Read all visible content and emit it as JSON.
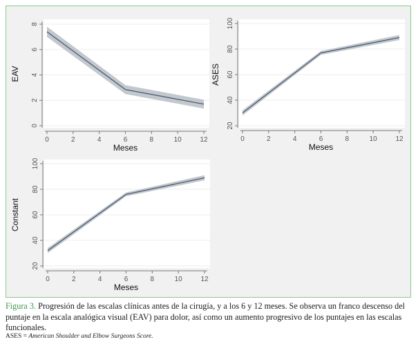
{
  "chart_data": [
    {
      "type": "line",
      "ylabel": "EAV",
      "xlabel": "Meses",
      "x": [
        0,
        6,
        12
      ],
      "values": [
        7.4,
        2.85,
        1.7
      ],
      "ci_lower": [
        7.0,
        2.5,
        1.35
      ],
      "ci_upper": [
        7.8,
        3.2,
        2.05
      ],
      "xticks": [
        0,
        2,
        4,
        6,
        8,
        10,
        12
      ],
      "yticks": [
        0,
        2,
        4,
        6,
        8
      ],
      "xlim": [
        0,
        12
      ],
      "ylim": [
        0,
        8
      ],
      "grid": true
    },
    {
      "type": "line",
      "ylabel": "ASES",
      "xlabel": "Meses",
      "x": [
        0,
        6,
        12
      ],
      "values": [
        30,
        77,
        89
      ],
      "ci_lower": [
        28,
        75.5,
        87
      ],
      "ci_upper": [
        32,
        78.5,
        91
      ],
      "xticks": [
        0,
        2,
        4,
        6,
        8,
        10,
        12
      ],
      "yticks": [
        20,
        40,
        60,
        80,
        100
      ],
      "xlim": [
        0,
        12
      ],
      "ylim": [
        20,
        100
      ],
      "grid": true
    },
    {
      "type": "line",
      "ylabel": "Constant",
      "xlabel": "Meses",
      "x": [
        0,
        6,
        12
      ],
      "values": [
        32,
        76,
        89
      ],
      "ci_lower": [
        30,
        74.5,
        87
      ],
      "ci_upper": [
        34,
        77.5,
        91
      ],
      "xticks": [
        0,
        2,
        4,
        6,
        8,
        10,
        12
      ],
      "yticks": [
        20,
        40,
        60,
        80,
        100
      ],
      "xlim": [
        0,
        12
      ],
      "ylim": [
        20,
        100
      ],
      "grid": true
    }
  ],
  "colors": {
    "frame_border": "#8cc88c",
    "frame_background": "#f1f1f1",
    "plot_background": "#ffffff",
    "line": "#4a5a70",
    "band": "#b8bec6",
    "caption_label": "#3c9a52"
  },
  "caption": {
    "label": "Figura 3.",
    "text": " Progresión de las escalas clínicas antes de la cirugía, y a los 6 y 12 meses. Se observa un franco descenso del puntaje en la escala analógica visual (EAV) para dolor, así como un aumento progresivo de los puntajes en las escalas funcionales."
  },
  "note": {
    "abbr": "ASES = ",
    "expansion": "American Shoulder and Elbow Surgeons Score."
  }
}
